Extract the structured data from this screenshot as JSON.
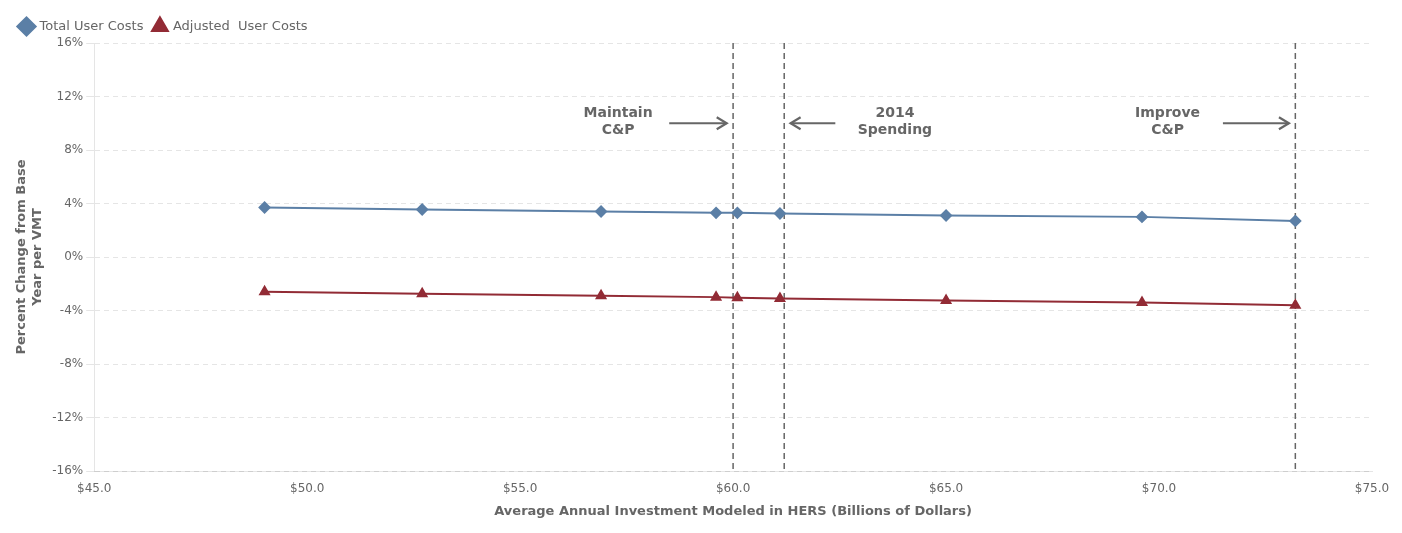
{
  "chart_data": {
    "type": "line",
    "x": [
      49.0,
      52.7,
      56.9,
      59.6,
      60.1,
      61.1,
      65.0,
      69.6,
      73.2
    ],
    "series": [
      {
        "name": "Total User Costs",
        "color": "#5b7fa6",
        "marker": "diamond",
        "values": [
          3.7,
          3.55,
          3.4,
          3.3,
          3.3,
          3.25,
          3.1,
          3.0,
          2.7
        ]
      },
      {
        "name": "Adjusted  User Costs",
        "color": "#922b35",
        "marker": "triangle",
        "values": [
          -2.6,
          -2.75,
          -2.9,
          -3.0,
          -3.05,
          -3.1,
          -3.25,
          -3.4,
          -3.6
        ]
      }
    ],
    "xlim": [
      45.0,
      75.0
    ],
    "xticks": [
      {
        "value": 45.0,
        "label": "$45.0"
      },
      {
        "value": 50.0,
        "label": "$50.0"
      },
      {
        "value": 55.0,
        "label": "$55.0"
      },
      {
        "value": 60.0,
        "label": "$60.0"
      },
      {
        "value": 65.0,
        "label": "$65.0"
      },
      {
        "value": 70.0,
        "label": "$70.0"
      },
      {
        "value": 75.0,
        "label": "$75.0"
      }
    ],
    "ylim": [
      -16,
      16
    ],
    "yticks": [
      {
        "value": -16,
        "label": "-16%"
      },
      {
        "value": -12,
        "label": "-12%"
      },
      {
        "value": -8,
        "label": "-8%"
      },
      {
        "value": -4,
        "label": "-4%"
      },
      {
        "value": 0,
        "label": "0%"
      },
      {
        "value": 4,
        "label": "4%"
      },
      {
        "value": 8,
        "label": "8%"
      },
      {
        "value": 12,
        "label": "12%"
      },
      {
        "value": 16,
        "label": "16%"
      }
    ],
    "xlabel": "Average Annual Investment Modeled in HERS (Billions of Dollars)",
    "ylabel": "Percent Change from Base\nYear per VMT",
    "grid": true,
    "legend": "upper left",
    "vlines": [
      60.0,
      61.2,
      73.2
    ],
    "annotations": [
      {
        "text": [
          "Maintain",
          "C&P"
        ],
        "x": 57.3,
        "y": 10.0,
        "arrow_from": 58.5,
        "arrow_to": 59.85
      },
      {
        "text": [
          "2014",
          "Spending"
        ],
        "x": 63.8,
        "y": 10.0,
        "arrow_from": 62.4,
        "arrow_to": 61.35
      },
      {
        "text": [
          "Improve",
          "C&P"
        ],
        "x": 70.2,
        "y": 10.0,
        "arrow_from": 71.5,
        "arrow_to": 73.05
      }
    ]
  }
}
